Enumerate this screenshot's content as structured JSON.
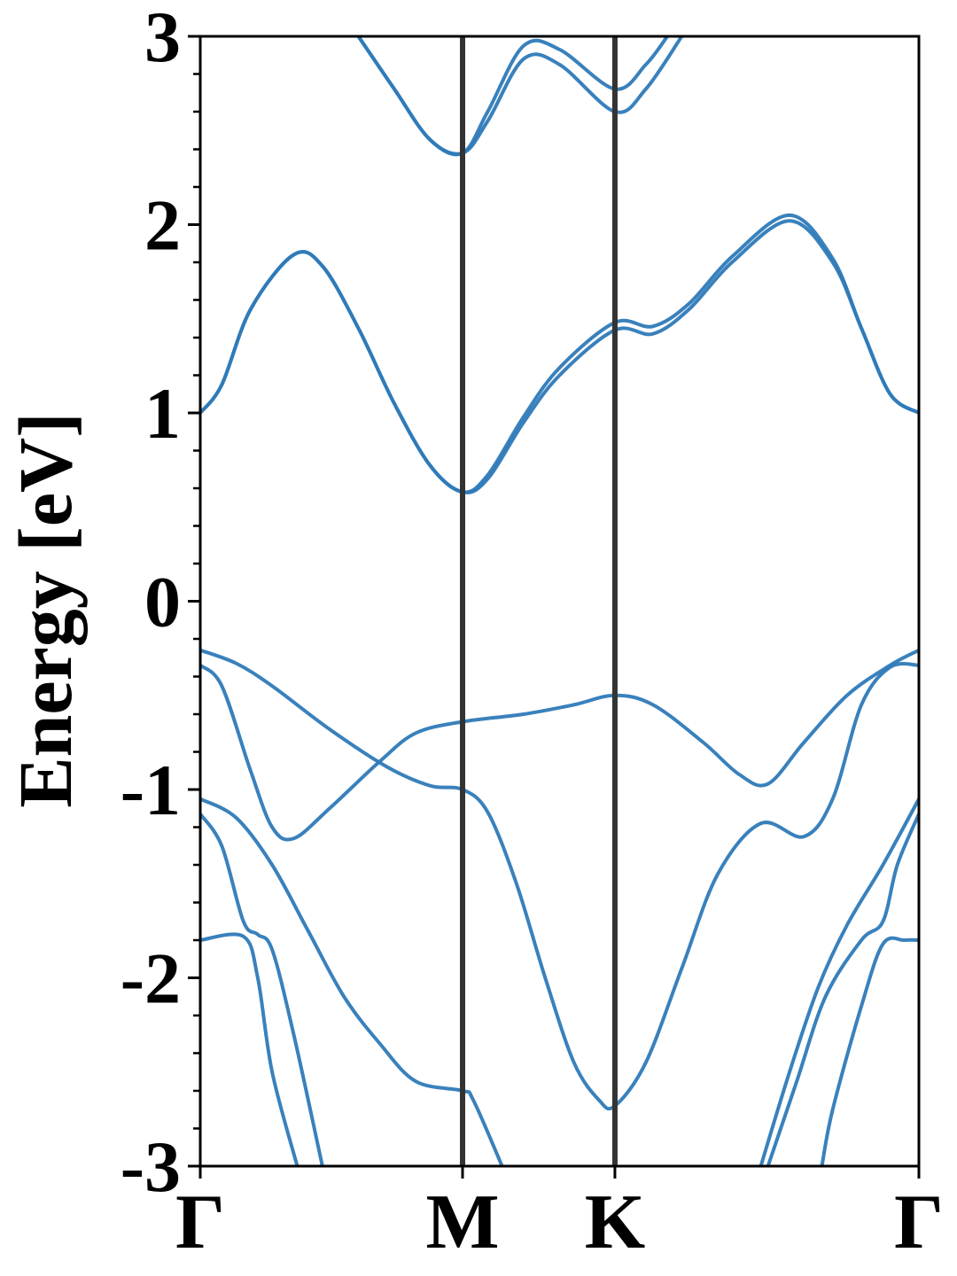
{
  "chart_data": {
    "type": "line",
    "ylabel": "Energy [eV]",
    "xlabel": "",
    "ylim": [
      -3,
      3
    ],
    "yticks": [
      {
        "value": -3,
        "label": "-3"
      },
      {
        "value": -2,
        "label": "-2"
      },
      {
        "value": -1,
        "label": "-1"
      },
      {
        "value": 0,
        "label": "0"
      },
      {
        "value": 1,
        "label": "1"
      },
      {
        "value": 2,
        "label": "2"
      },
      {
        "value": 3,
        "label": "3"
      }
    ],
    "xlim": [
      0,
      1
    ],
    "kpoints": [
      {
        "label": "Γ",
        "x": 0.0
      },
      {
        "label": "M",
        "x": 0.365
      },
      {
        "label": "K",
        "x": 0.577
      },
      {
        "label": "Γ",
        "x": 1.0
      }
    ],
    "grid": false,
    "colors": {
      "bands": "#2e7ab8",
      "high_symmetry_lines": "#333333",
      "frame": "#000000"
    },
    "series": [
      {
        "values": [
          [
            0.0,
            1.0
          ],
          [
            0.03,
            1.15
          ],
          [
            0.07,
            1.55
          ],
          [
            0.13,
            1.84
          ],
          [
            0.17,
            1.78
          ],
          [
            0.22,
            1.45
          ],
          [
            0.27,
            1.05
          ],
          [
            0.32,
            0.72
          ],
          [
            0.365,
            0.58
          ],
          [
            0.4,
            0.65
          ],
          [
            0.45,
            0.95
          ],
          [
            0.5,
            1.2
          ],
          [
            0.577,
            1.44
          ],
          [
            0.63,
            1.42
          ],
          [
            0.68,
            1.55
          ],
          [
            0.74,
            1.8
          ],
          [
            0.82,
            2.02
          ],
          [
            0.88,
            1.8
          ],
          [
            0.92,
            1.45
          ],
          [
            0.96,
            1.1
          ],
          [
            1.0,
            1.0
          ]
        ]
      },
      {
        "values": [
          [
            0.0,
            1.0
          ],
          [
            0.03,
            1.15
          ],
          [
            0.07,
            1.55
          ],
          [
            0.13,
            1.84
          ],
          [
            0.17,
            1.78
          ],
          [
            0.22,
            1.45
          ],
          [
            0.27,
            1.05
          ],
          [
            0.32,
            0.72
          ],
          [
            0.365,
            0.58
          ],
          [
            0.4,
            0.67
          ],
          [
            0.45,
            0.98
          ],
          [
            0.5,
            1.24
          ],
          [
            0.577,
            1.48
          ],
          [
            0.63,
            1.46
          ],
          [
            0.68,
            1.58
          ],
          [
            0.74,
            1.83
          ],
          [
            0.82,
            2.05
          ],
          [
            0.88,
            1.82
          ],
          [
            0.92,
            1.45
          ],
          [
            0.96,
            1.1
          ],
          [
            1.0,
            1.0
          ]
        ]
      },
      {
        "values": [
          [
            0.22,
            3.0
          ],
          [
            0.27,
            2.72
          ],
          [
            0.32,
            2.45
          ],
          [
            0.365,
            2.38
          ],
          [
            0.4,
            2.55
          ],
          [
            0.45,
            2.88
          ],
          [
            0.5,
            2.85
          ],
          [
            0.577,
            2.6
          ],
          [
            0.62,
            2.72
          ],
          [
            0.67,
            3.0
          ]
        ]
      },
      {
        "values": [
          [
            0.22,
            3.0
          ],
          [
            0.27,
            2.72
          ],
          [
            0.32,
            2.45
          ],
          [
            0.365,
            2.38
          ],
          [
            0.4,
            2.6
          ],
          [
            0.45,
            2.95
          ],
          [
            0.5,
            2.93
          ],
          [
            0.577,
            2.72
          ],
          [
            0.62,
            2.85
          ],
          [
            0.65,
            3.0
          ]
        ]
      },
      {
        "values": [
          [
            0.0,
            -0.26
          ],
          [
            0.05,
            -0.33
          ],
          [
            0.1,
            -0.45
          ],
          [
            0.18,
            -0.68
          ],
          [
            0.26,
            -0.88
          ],
          [
            0.32,
            -0.98
          ],
          [
            0.365,
            -1.0
          ],
          [
            0.4,
            -1.12
          ],
          [
            0.44,
            -1.5
          ],
          [
            0.48,
            -2.0
          ],
          [
            0.52,
            -2.45
          ],
          [
            0.555,
            -2.65
          ],
          [
            0.577,
            -2.68
          ],
          [
            0.62,
            -2.45
          ],
          [
            0.67,
            -1.95
          ],
          [
            0.72,
            -1.45
          ],
          [
            0.78,
            -1.18
          ],
          [
            0.84,
            -1.25
          ],
          [
            0.88,
            -1.05
          ],
          [
            0.92,
            -0.55
          ],
          [
            0.96,
            -0.35
          ],
          [
            1.0,
            -0.34
          ]
        ]
      },
      {
        "values": [
          [
            0.0,
            -0.34
          ],
          [
            0.03,
            -0.45
          ],
          [
            0.07,
            -0.9
          ],
          [
            0.1,
            -1.2
          ],
          [
            0.13,
            -1.26
          ],
          [
            0.18,
            -1.1
          ],
          [
            0.25,
            -0.85
          ],
          [
            0.3,
            -0.7
          ],
          [
            0.365,
            -0.64
          ],
          [
            0.45,
            -0.6
          ],
          [
            0.52,
            -0.55
          ],
          [
            0.577,
            -0.5
          ],
          [
            0.63,
            -0.55
          ],
          [
            0.7,
            -0.75
          ],
          [
            0.75,
            -0.92
          ],
          [
            0.79,
            -0.97
          ],
          [
            0.84,
            -0.75
          ],
          [
            0.9,
            -0.5
          ],
          [
            0.96,
            -0.34
          ],
          [
            1.0,
            -0.26
          ]
        ]
      },
      {
        "values": [
          [
            0.0,
            -1.05
          ],
          [
            0.05,
            -1.15
          ],
          [
            0.1,
            -1.4
          ],
          [
            0.15,
            -1.75
          ],
          [
            0.2,
            -2.1
          ],
          [
            0.25,
            -2.35
          ],
          [
            0.3,
            -2.55
          ],
          [
            0.365,
            -2.6
          ],
          [
            0.38,
            -2.65
          ],
          [
            0.42,
            -3.0
          ]
        ]
      },
      {
        "values": [
          [
            0.0,
            -1.13
          ],
          [
            0.03,
            -1.3
          ],
          [
            0.06,
            -1.7
          ],
          [
            0.08,
            -1.77
          ],
          [
            0.1,
            -1.85
          ],
          [
            0.13,
            -2.3
          ],
          [
            0.17,
            -3.0
          ]
        ]
      },
      {
        "values": [
          [
            0.0,
            -1.8
          ],
          [
            0.06,
            -1.78
          ],
          [
            0.08,
            -2.0
          ],
          [
            0.1,
            -2.5
          ],
          [
            0.135,
            -3.0
          ]
        ]
      },
      {
        "values": [
          [
            0.78,
            -3.0
          ],
          [
            0.82,
            -2.5
          ],
          [
            0.86,
            -2.05
          ],
          [
            0.9,
            -1.72
          ],
          [
            0.95,
            -1.4
          ],
          [
            1.0,
            -1.05
          ]
        ]
      },
      {
        "values": [
          [
            0.79,
            -3.0
          ],
          [
            0.83,
            -2.55
          ],
          [
            0.87,
            -2.1
          ],
          [
            0.92,
            -1.8
          ],
          [
            0.95,
            -1.7
          ],
          [
            0.97,
            -1.4
          ],
          [
            1.0,
            -1.13
          ]
        ]
      },
      {
        "values": [
          [
            0.865,
            -3.0
          ],
          [
            0.88,
            -2.7
          ],
          [
            0.92,
            -2.15
          ],
          [
            0.95,
            -1.82
          ],
          [
            0.98,
            -1.8
          ],
          [
            1.0,
            -1.8
          ]
        ]
      }
    ]
  }
}
